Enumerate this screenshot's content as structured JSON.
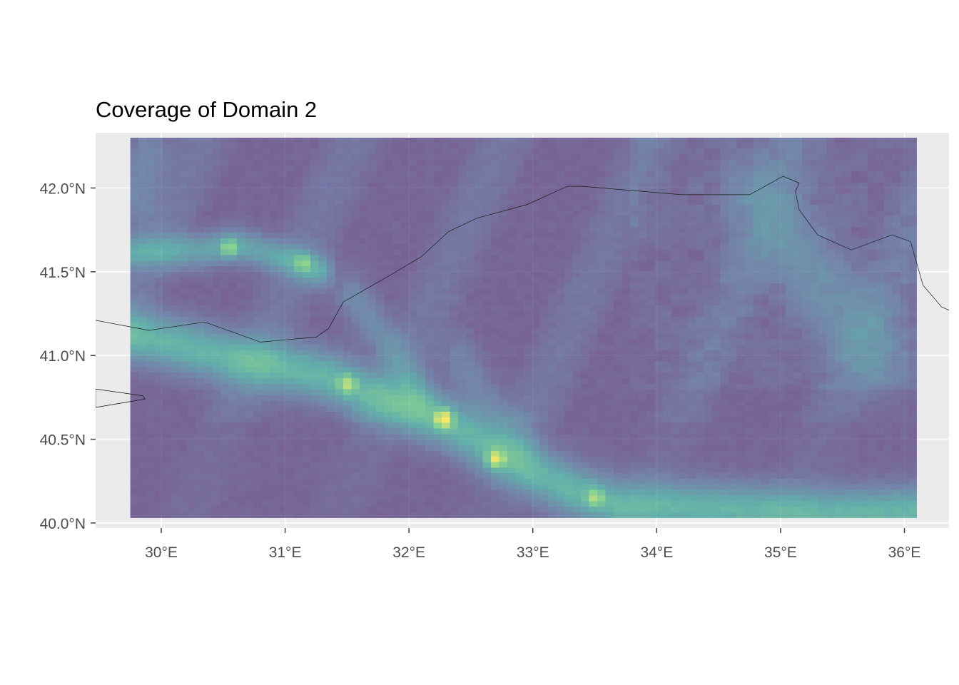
{
  "chart_data": {
    "type": "heatmap",
    "title": "Coverage of Domain 2",
    "xlabel": "",
    "ylabel": "",
    "x_ticks": [
      "30°E",
      "31°E",
      "32°E",
      "33°E",
      "34°E",
      "35°E",
      "36°E"
    ],
    "x_tick_values": [
      30,
      31,
      32,
      33,
      34,
      35,
      36
    ],
    "y_ticks": [
      "40.0°N",
      "40.5°N",
      "41.0°N",
      "41.5°N",
      "42.0°N"
    ],
    "y_tick_values": [
      40.0,
      40.5,
      41.0,
      41.5,
      42.0
    ],
    "xlim": [
      29.47,
      36.36
    ],
    "ylim": [
      39.97,
      42.33
    ],
    "raster_extent": {
      "lon": [
        29.75,
        36.1
      ],
      "lat": [
        40.03,
        42.3
      ]
    },
    "grid": true,
    "legend": "none",
    "colors": {
      "panel_background": "#ebebeb",
      "grid_line": "#ffffff",
      "land": "#e8e8e8",
      "low": "#440154",
      "mid_low": "#31688e",
      "mid": "#21918c",
      "mid_high": "#5ec962",
      "high": "#fde725"
    },
    "raster_opacity": 0.68,
    "hotspots": [
      {
        "lon": 32.28,
        "lat": 40.62,
        "value": 1.0
      },
      {
        "lon": 32.7,
        "lat": 40.38,
        "value": 0.78
      },
      {
        "lon": 31.5,
        "lat": 40.83,
        "value": 0.62
      },
      {
        "lon": 30.55,
        "lat": 41.64,
        "value": 0.66
      },
      {
        "lon": 31.15,
        "lat": 41.55,
        "value": 0.48
      },
      {
        "lon": 33.5,
        "lat": 40.15,
        "value": 0.55
      }
    ],
    "coastline_black_sea": [
      [
        29.47,
        41.21
      ],
      [
        29.9,
        41.15
      ],
      [
        30.35,
        41.2
      ],
      [
        30.8,
        41.08
      ],
      [
        31.25,
        41.11
      ],
      [
        31.35,
        41.16
      ],
      [
        31.47,
        41.32
      ],
      [
        31.85,
        41.48
      ],
      [
        32.1,
        41.59
      ],
      [
        32.32,
        41.74
      ],
      [
        32.55,
        41.82
      ],
      [
        32.95,
        41.9
      ],
      [
        33.28,
        42.01
      ],
      [
        33.4,
        42.01
      ],
      [
        34.2,
        41.96
      ],
      [
        34.75,
        41.96
      ],
      [
        35.02,
        42.07
      ],
      [
        35.15,
        42.03
      ],
      [
        35.12,
        41.98
      ],
      [
        35.15,
        41.87
      ],
      [
        35.3,
        41.72
      ],
      [
        35.57,
        41.63
      ],
      [
        35.9,
        41.72
      ],
      [
        36.05,
        41.68
      ],
      [
        36.15,
        41.42
      ],
      [
        36.3,
        41.29
      ],
      [
        36.36,
        41.27
      ]
    ],
    "coastline_marmara": [
      [
        29.47,
        40.8
      ],
      [
        29.85,
        40.76
      ],
      [
        29.87,
        40.74
      ],
      [
        29.47,
        40.69
      ]
    ]
  }
}
